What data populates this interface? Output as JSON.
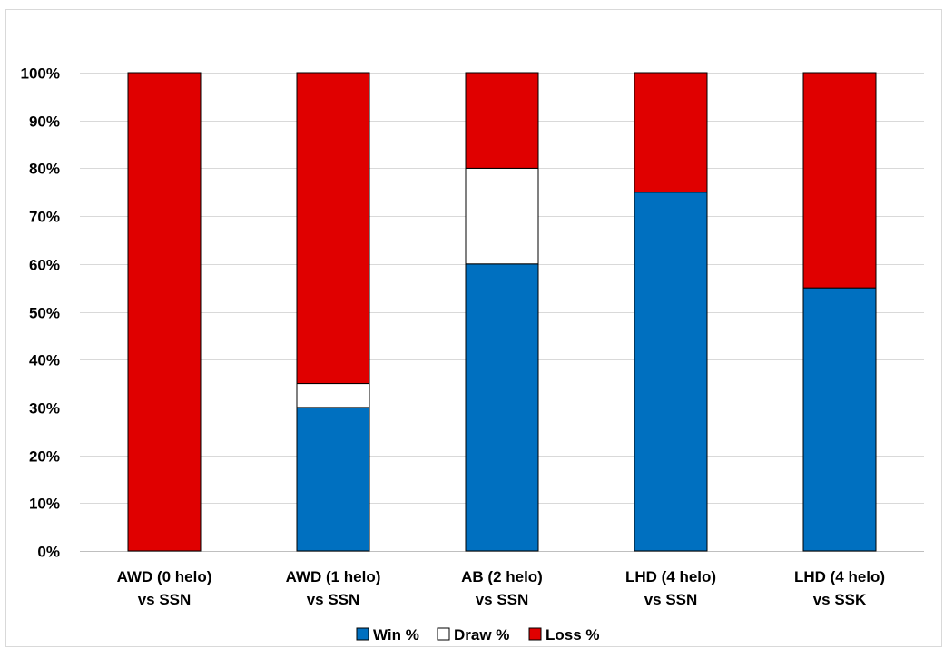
{
  "chart_data": {
    "type": "bar",
    "stacked": true,
    "normalized": true,
    "categories": [
      [
        "AWD (0 helo)",
        "vs SSN"
      ],
      [
        "AWD (1 helo)",
        "vs SSN"
      ],
      [
        "AB (2 helo)",
        "vs SSN"
      ],
      [
        "LHD (4 helo)",
        "vs SSN"
      ],
      [
        "LHD (4 helo)",
        "vs SSK"
      ]
    ],
    "series": [
      {
        "name": "Win %",
        "color": "#0070C0",
        "values": [
          0,
          30,
          60,
          75,
          55
        ]
      },
      {
        "name": "Draw %",
        "color": "#FFFFFF",
        "values": [
          0,
          5,
          20,
          0,
          0
        ]
      },
      {
        "name": "Loss %",
        "color": "#E00000",
        "values": [
          100,
          65,
          20,
          25,
          45
        ]
      }
    ],
    "ylim": [
      0,
      100
    ],
    "yticks": [
      "0%",
      "10%",
      "20%",
      "30%",
      "40%",
      "50%",
      "60%",
      "70%",
      "80%",
      "90%",
      "100%"
    ],
    "grid": true,
    "legend_position": "bottom",
    "xlabel": "",
    "ylabel": "",
    "title": ""
  }
}
